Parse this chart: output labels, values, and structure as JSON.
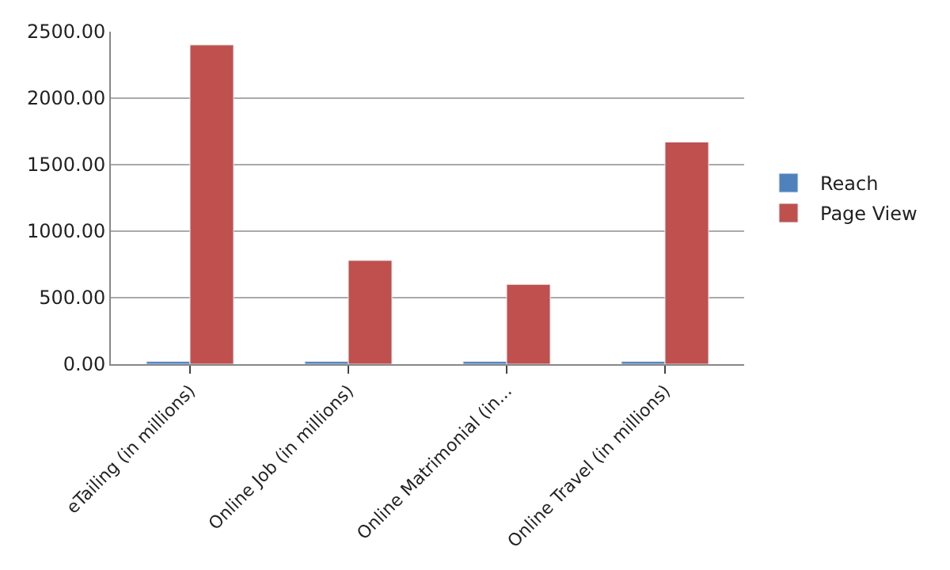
{
  "chart_data": {
    "type": "bar",
    "categories": [
      "eTailing (in millions)",
      "Online Job (in millions)",
      "Online Matrimonial (in...",
      "Online Travel (in millions)"
    ],
    "series": [
      {
        "name": "Reach",
        "color": "#4f81bd",
        "values": [
          20,
          20,
          20,
          20
        ]
      },
      {
        "name": "Page View",
        "color": "#c0504d",
        "values": [
          2400,
          780,
          600,
          1670
        ]
      }
    ],
    "ylim": [
      0,
      2500
    ],
    "yticks": [
      {
        "value": 0,
        "label": "0.00"
      },
      {
        "value": 500,
        "label": "500.00"
      },
      {
        "value": 1000,
        "label": "1000.00"
      },
      {
        "value": 1500,
        "label": "1500.00"
      },
      {
        "value": 2000,
        "label": "2000.00"
      },
      {
        "value": 2500,
        "label": "2500.00"
      }
    ],
    "grid": "y",
    "legend": "right"
  }
}
